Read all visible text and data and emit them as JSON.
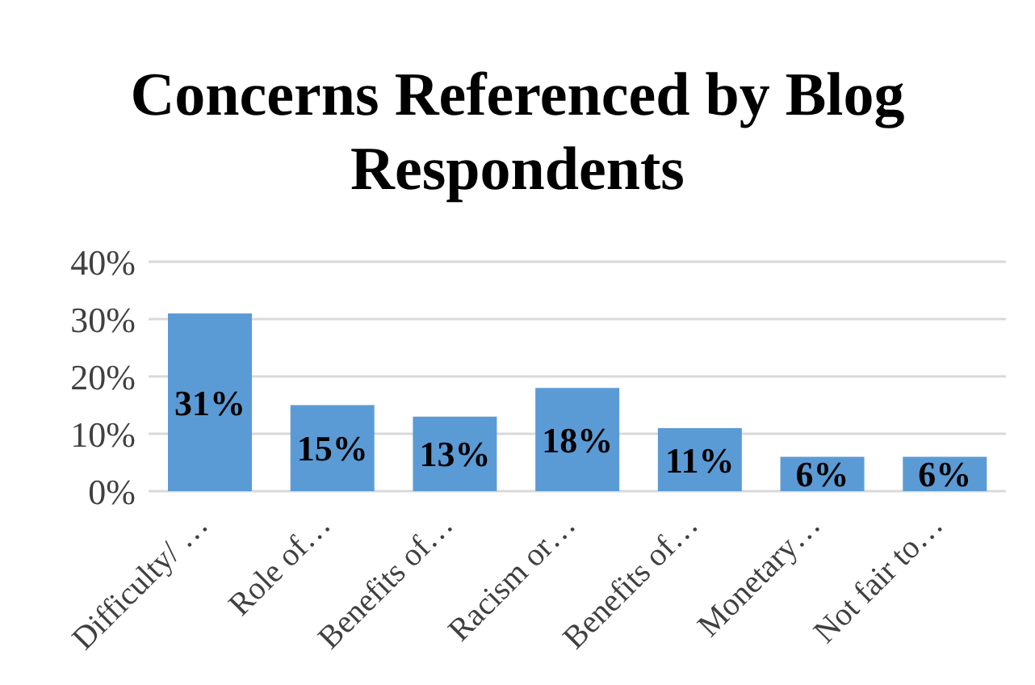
{
  "chart_data": {
    "type": "bar",
    "title": "Concerns Referenced by Blog Respondents",
    "categories": [
      "Difficulty/ …",
      "Role of…",
      "Benefits of…",
      "Racism or…",
      "Benefits of…",
      "Monetary…",
      "Not fair to…"
    ],
    "values": [
      31,
      15,
      13,
      18,
      11,
      6,
      6
    ],
    "value_labels": [
      "31%",
      "15%",
      "13%",
      "18%",
      "11%",
      "6%",
      "6%"
    ],
    "color": "#5b9bd5",
    "ylim": [
      0,
      40
    ],
    "yticks": [
      {
        "value": 0,
        "label": "0%"
      },
      {
        "value": 10,
        "label": "10%"
      },
      {
        "value": 20,
        "label": "20%"
      },
      {
        "value": 30,
        "label": "30%"
      },
      {
        "value": 40,
        "label": "40%"
      }
    ],
    "grid": "y",
    "legend": false
  }
}
